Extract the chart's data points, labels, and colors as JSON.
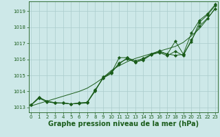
{
  "background_color": "#cde8e8",
  "grid_color": "#aacccc",
  "line_color": "#1a5c1a",
  "marker_color": "#1a5c1a",
  "xlabel": "Graphe pression niveau de la mer (hPa)",
  "xlabel_fontsize": 7.0,
  "xlabel_color": "#1a5c1a",
  "ylabel_ticks": [
    1013,
    1014,
    1015,
    1016,
    1017,
    1018,
    1019
  ],
  "xticks": [
    0,
    1,
    2,
    3,
    4,
    5,
    6,
    7,
    8,
    9,
    10,
    11,
    12,
    13,
    14,
    15,
    16,
    17,
    18,
    19,
    20,
    21,
    22,
    23
  ],
  "ylim": [
    1012.7,
    1019.6
  ],
  "xlim": [
    -0.3,
    23.3
  ],
  "smooth_line": [
    1013.1,
    1013.25,
    1013.4,
    1013.55,
    1013.7,
    1013.85,
    1014.0,
    1014.2,
    1014.5,
    1014.85,
    1015.3,
    1015.6,
    1015.85,
    1016.05,
    1016.2,
    1016.35,
    1016.5,
    1016.65,
    1016.8,
    1017.05,
    1017.45,
    1017.9,
    1018.5,
    1019.2
  ],
  "series1_x": [
    0,
    1,
    2,
    3,
    4,
    5,
    6,
    7,
    8,
    9,
    10,
    11,
    12,
    13,
    14,
    15,
    16,
    17,
    18,
    19,
    20,
    21,
    22,
    23
  ],
  "series1_y": [
    1013.15,
    1013.6,
    1013.4,
    1013.3,
    1013.28,
    1013.22,
    1013.25,
    1013.28,
    1014.05,
    1014.85,
    1015.15,
    1016.1,
    1016.1,
    1015.9,
    1016.05,
    1016.3,
    1016.45,
    1016.32,
    1016.25,
    1016.3,
    1017.1,
    1018.3,
    1018.75,
    1019.35
  ],
  "series2_x": [
    0,
    1,
    2,
    3,
    4,
    5,
    6,
    7,
    8,
    9,
    10,
    11,
    12,
    13,
    14,
    15,
    16,
    17,
    18,
    19,
    20,
    21,
    22,
    23
  ],
  "series2_y": [
    1013.15,
    1013.65,
    1013.38,
    1013.28,
    1013.28,
    1013.22,
    1013.28,
    1013.32,
    1014.02,
    1014.9,
    1015.2,
    1015.7,
    1016.1,
    1015.82,
    1015.95,
    1016.28,
    1016.42,
    1016.22,
    1016.5,
    1016.22,
    1017.2,
    1018.05,
    1018.55,
    1019.15
  ],
  "series3_x": [
    0,
    1,
    2,
    3,
    4,
    5,
    6,
    7,
    8,
    9,
    10,
    11,
    12,
    13,
    14,
    15,
    16,
    17,
    18,
    19,
    20,
    21,
    22,
    23
  ],
  "series3_y": [
    1013.15,
    1013.58,
    1013.35,
    1013.28,
    1013.28,
    1013.22,
    1013.28,
    1013.32,
    1014.1,
    1014.82,
    1015.12,
    1015.78,
    1016.02,
    1015.82,
    1016.02,
    1016.32,
    1016.52,
    1016.32,
    1017.12,
    1016.32,
    1017.62,
    1018.42,
    1018.82,
    1019.42
  ]
}
